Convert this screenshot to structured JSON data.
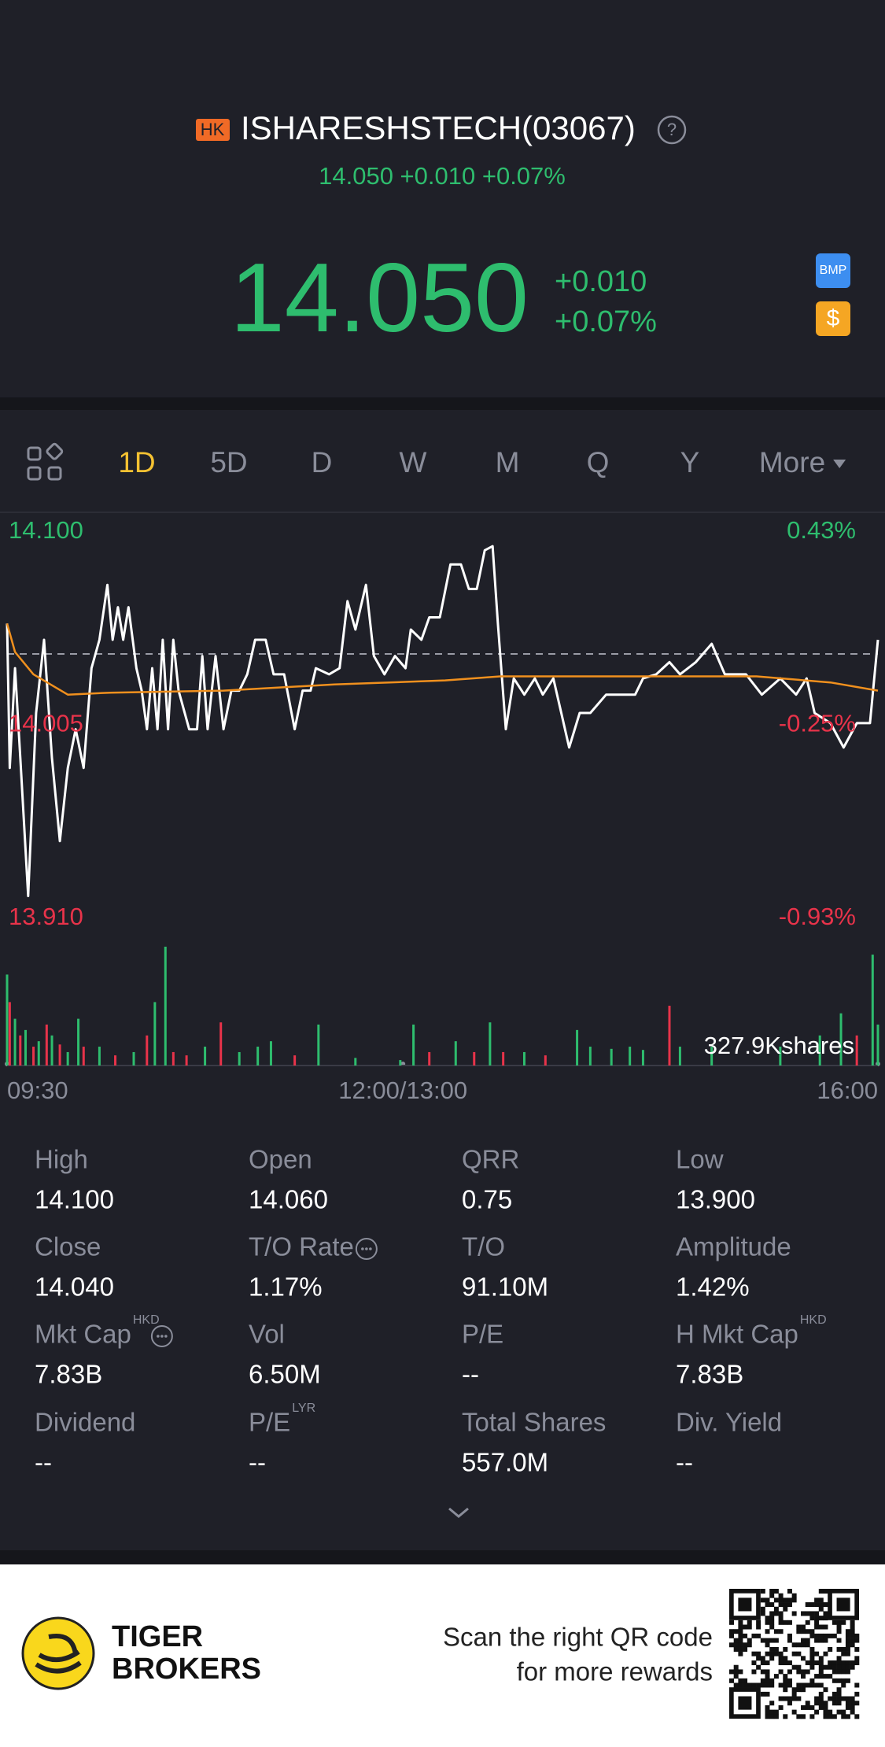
{
  "header": {
    "exchange": "HK",
    "title": "ISHARESHSTECH(03067)",
    "subtitle": "14.050 +0.010 +0.07%"
  },
  "quote": {
    "price": "14.050",
    "change": "+0.010",
    "change_pct": "+0.07%"
  },
  "tabs": {
    "items": [
      "1D",
      "5D",
      "D",
      "W",
      "M",
      "Q",
      "Y",
      "More"
    ],
    "active": 0
  },
  "chart_data": [
    {
      "type": "line",
      "prev_close": 14.04,
      "xlim": [
        0,
        330
      ],
      "xticks": [
        {
          "value": 0,
          "label": "09:30"
        },
        {
          "value": 150,
          "label": "12:00/13:00"
        },
        {
          "value": 330,
          "label": "16:00"
        }
      ],
      "ylim": [
        13.91,
        14.1
      ],
      "yticks": [
        {
          "value": 14.1,
          "label": "14.100"
        },
        {
          "value": 14.005,
          "label": "14.005"
        },
        {
          "value": 13.91,
          "label": "13.910"
        }
      ],
      "y2lim": [
        -0.93,
        0.43
      ],
      "y2ticks": [
        {
          "value": 0.43,
          "label": "0.43%"
        },
        {
          "value": -0.25,
          "label": "-0.25%"
        },
        {
          "value": -0.93,
          "label": "-0.93%"
        }
      ],
      "series": [
        {
          "color": "#ffffff",
          "x": [
            0,
            1,
            3,
            5,
            8,
            11,
            14,
            17,
            20,
            23,
            26,
            29,
            32,
            35,
            38,
            40,
            42,
            44,
            46,
            49,
            51,
            53,
            55,
            57,
            59,
            61,
            63,
            65,
            69,
            72,
            74,
            76,
            79,
            82,
            85,
            88,
            91,
            94,
            98,
            101,
            105,
            109,
            112,
            115,
            117,
            122,
            126,
            129,
            132,
            136,
            139,
            143,
            147,
            151,
            153,
            157,
            160,
            164,
            168,
            172,
            175,
            178,
            181,
            184,
            186,
            189,
            192,
            196,
            200,
            203,
            207,
            210,
            213,
            217,
            221,
            227,
            232,
            238,
            241,
            246,
            251,
            255,
            261,
            267,
            272,
            280,
            286,
            293,
            299,
            303,
            306,
            312,
            317,
            322,
            327,
            330
          ],
          "values": [
            14.055,
            13.984,
            14.033,
            13.989,
            13.921,
            14.011,
            14.047,
            13.989,
            13.948,
            13.984,
            14.003,
            13.984,
            14.033,
            14.047,
            14.074,
            14.047,
            14.063,
            14.047,
            14.063,
            14.033,
            14.022,
            14.003,
            14.033,
            14.003,
            14.047,
            14.003,
            14.047,
            14.022,
            14.003,
            14.003,
            14.039,
            14.003,
            14.039,
            14.003,
            14.022,
            14.022,
            14.03,
            14.047,
            14.047,
            14.03,
            14.03,
            14.003,
            14.022,
            14.022,
            14.033,
            14.03,
            14.033,
            14.066,
            14.052,
            14.074,
            14.039,
            14.03,
            14.039,
            14.033,
            14.052,
            14.047,
            14.058,
            14.058,
            14.084,
            14.084,
            14.072,
            14.072,
            14.091,
            14.093,
            14.055,
            14.003,
            14.028,
            14.02,
            14.028,
            14.02,
            14.028,
            14.011,
            13.994,
            14.011,
            14.011,
            14.02,
            14.02,
            14.02,
            14.028,
            14.03,
            14.036,
            14.03,
            14.036,
            14.045,
            14.03,
            14.03,
            14.02,
            14.028,
            14.02,
            14.028,
            14.011,
            14.006,
            13.994,
            14.006,
            14.006,
            14.047
          ]
        },
        {
          "color": "#f0901e",
          "x": [
            0,
            3,
            10,
            23,
            39,
            82,
            124,
            166,
            187,
            229,
            284,
            312,
            330
          ],
          "values": [
            14.055,
            14.041,
            14.03,
            14.02,
            14.021,
            14.022,
            14.025,
            14.027,
            14.029,
            14.029,
            14.029,
            14.026,
            14.022
          ]
        }
      ]
    },
    {
      "type": "bar",
      "xlim": [
        0,
        330
      ],
      "ylim": [
        0,
        327.9
      ],
      "yticks": [
        {
          "value": 327.9,
          "label": "327.9Kshares"
        }
      ],
      "x": [
        0,
        1,
        3,
        5,
        7,
        10,
        12,
        15,
        17,
        20,
        23,
        27,
        29,
        35,
        41,
        48,
        53,
        56,
        60,
        63,
        68,
        75,
        81,
        88,
        95,
        100,
        109,
        118,
        132,
        149,
        154,
        160,
        170,
        177,
        183,
        188,
        196,
        204,
        216,
        221,
        229,
        236,
        241,
        251,
        255,
        267,
        293,
        308,
        316,
        322,
        328,
        330
      ],
      "values": [
        251,
        175,
        129,
        83,
        98,
        52,
        67,
        113,
        83,
        58,
        37,
        129,
        52,
        52,
        28,
        37,
        83,
        175,
        327.9,
        37,
        28,
        52,
        119,
        37,
        52,
        67,
        28,
        113,
        21,
        15,
        113,
        37,
        67,
        37,
        119,
        37,
        37,
        28,
        98,
        52,
        46,
        52,
        43,
        165,
        52,
        52,
        52,
        83,
        144,
        83,
        306,
        113
      ],
      "colors": [
        "#2ebd6e",
        "#e8334a",
        "#2ebd6e",
        "#e8334a",
        "#2ebd6e",
        "#e8334a",
        "#2ebd6e",
        "#e8334a",
        "#2ebd6e",
        "#e8334a",
        "#2ebd6e",
        "#2ebd6e",
        "#e8334a",
        "#2ebd6e",
        "#e8334a",
        "#2ebd6e",
        "#e8334a",
        "#2ebd6e",
        "#2ebd6e",
        "#e8334a",
        "#e8334a",
        "#2ebd6e",
        "#e8334a",
        "#2ebd6e",
        "#2ebd6e",
        "#2ebd6e",
        "#e8334a",
        "#2ebd6e",
        "#2ebd6e",
        "#2ebd6e",
        "#2ebd6e",
        "#e8334a",
        "#2ebd6e",
        "#e8334a",
        "#2ebd6e",
        "#e8334a",
        "#2ebd6e",
        "#e8334a",
        "#2ebd6e",
        "#2ebd6e",
        "#2ebd6e",
        "#2ebd6e",
        "#2ebd6e",
        "#e8334a",
        "#2ebd6e",
        "#2ebd6e",
        "#2ebd6e",
        "#2ebd6e",
        "#2ebd6e",
        "#e8334a",
        "#2ebd6e",
        "#2ebd6e"
      ]
    }
  ],
  "stats": [
    {
      "label": "High",
      "value": "14.100"
    },
    {
      "label": "Open",
      "value": "14.060"
    },
    {
      "label": "QRR",
      "value": "0.75"
    },
    {
      "label": "Low",
      "value": "13.900"
    },
    {
      "label": "Close",
      "value": "14.040"
    },
    {
      "label": "T/O Rate",
      "value": "1.17%",
      "info": true
    },
    {
      "label": "T/O",
      "value": "91.10M"
    },
    {
      "label": "Amplitude",
      "value": "1.42%"
    },
    {
      "label": "Mkt Cap",
      "value": "7.83B",
      "sup": "HKD",
      "info": true
    },
    {
      "label": "Vol",
      "value": "6.50M"
    },
    {
      "label": "P/E",
      "value": "--"
    },
    {
      "label": "H Mkt Cap",
      "value": "7.83B",
      "sup": "HKD"
    },
    {
      "label": "Dividend",
      "value": "--"
    },
    {
      "label": "P/E",
      "value": "--",
      "sup": "LYR"
    },
    {
      "label": "Total Shares",
      "value": "557.0M"
    },
    {
      "label": "Div. Yield",
      "value": "--"
    }
  ],
  "footer": {
    "brand": [
      "TIGER",
      "BROKERS"
    ],
    "promo": [
      "Scan the right QR code",
      "for more rewards"
    ]
  }
}
